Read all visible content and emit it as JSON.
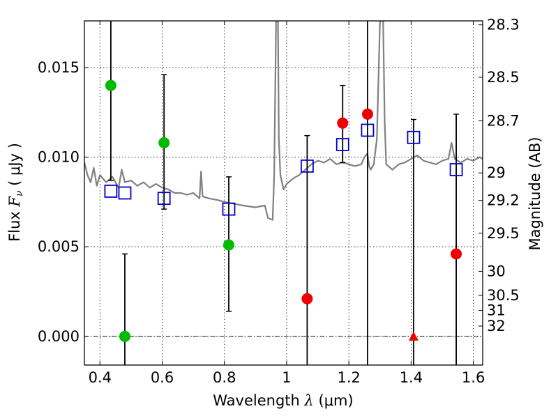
{
  "chart_data": {
    "type": "scatter",
    "x_axis": {
      "label_prefix": "Wavelength  ",
      "label_symbol": "λ",
      "label_suffix": " (μm)",
      "range": [
        0.35,
        1.63
      ],
      "ticks": [
        0.4,
        0.6,
        0.8,
        1.0,
        1.2,
        1.4,
        1.6
      ],
      "tick_labels": [
        "0.4",
        "0.6",
        "0.8",
        "1",
        "1.2",
        "1.4",
        "1.6"
      ]
    },
    "y_axis": {
      "label_prefix": "Flux  ",
      "label_symbol": "F",
      "label_subscript": "ν",
      "label_suffix": "  ( μJy )",
      "range": [
        -0.0016,
        0.0176
      ],
      "ticks": [
        0.0,
        0.005,
        0.01,
        0.015
      ],
      "tick_labels": [
        "0.000",
        "0.005",
        "0.010",
        "0.015"
      ]
    },
    "y2_axis": {
      "label": "Magnitude (AB)",
      "ticks": [
        28.3,
        28.5,
        28.7,
        29,
        29.2,
        29.5,
        30,
        30.5,
        31,
        32
      ],
      "tick_labels": [
        "28.3",
        "28.5",
        "28.7",
        "29",
        "29.2",
        "29.5",
        "30",
        "30.5",
        "31",
        "32"
      ]
    },
    "grid": true,
    "zero_line": 0.0,
    "colors": {
      "green": "#00bb00",
      "red": "#ee0000",
      "blue": "#0000cc",
      "spectrum": "#808080",
      "errorbar": "#000000"
    },
    "series": [
      {
        "marker": "circle",
        "color": "green",
        "points": [
          {
            "x": 0.435,
            "y": 0.014,
            "ylo": 0.0087,
            "yhi": 0.0176
          },
          {
            "x": 0.48,
            "y": 0.0,
            "ylo": -0.0016,
            "yhi": 0.0046
          },
          {
            "x": 0.606,
            "y": 0.0108,
            "ylo": 0.0071,
            "yhi": 0.0146
          },
          {
            "x": 0.814,
            "y": 0.0051,
            "ylo": 0.0014,
            "yhi": 0.0089
          }
        ]
      },
      {
        "marker": "circle",
        "color": "red",
        "points": [
          {
            "x": 1.066,
            "y": 0.0021,
            "ylo": -0.0016,
            "yhi": 0.0112
          },
          {
            "x": 1.18,
            "y": 0.0119,
            "ylo": 0.0097,
            "yhi": 0.014
          },
          {
            "x": 1.26,
            "y": 0.0124,
            "ylo": -0.0016,
            "yhi": 0.0176
          },
          {
            "x": 1.545,
            "y": 0.0046,
            "ylo": -0.0016,
            "yhi": 0.0124
          }
        ]
      },
      {
        "marker": "triangle",
        "color": "red",
        "points": [
          {
            "x": 1.408,
            "y": 0.0,
            "ylo": -0.0016,
            "yhi": 0.0121
          }
        ]
      },
      {
        "marker": "square-open",
        "color": "blue",
        "points": [
          {
            "x": 0.435,
            "y": 0.0081
          },
          {
            "x": 0.48,
            "y": 0.008
          },
          {
            "x": 0.606,
            "y": 0.0077
          },
          {
            "x": 0.814,
            "y": 0.0071
          },
          {
            "x": 1.066,
            "y": 0.0095
          },
          {
            "x": 1.18,
            "y": 0.0107
          },
          {
            "x": 1.26,
            "y": 0.0115
          },
          {
            "x": 1.408,
            "y": 0.0111
          },
          {
            "x": 1.545,
            "y": 0.0093
          }
        ]
      },
      {
        "marker": "line",
        "color": "spectrum",
        "points": [
          [
            0.35,
            0.0097
          ],
          [
            0.36,
            0.009
          ],
          [
            0.37,
            0.0086
          ],
          [
            0.38,
            0.0094
          ],
          [
            0.39,
            0.0084
          ],
          [
            0.4,
            0.009
          ],
          [
            0.42,
            0.0086
          ],
          [
            0.44,
            0.0089
          ],
          [
            0.46,
            0.0083
          ],
          [
            0.47,
            0.0093
          ],
          [
            0.48,
            0.0086
          ],
          [
            0.5,
            0.0087
          ],
          [
            0.52,
            0.0084
          ],
          [
            0.54,
            0.0086
          ],
          [
            0.56,
            0.0083
          ],
          [
            0.58,
            0.0085
          ],
          [
            0.6,
            0.0083
          ],
          [
            0.62,
            0.0082
          ],
          [
            0.64,
            0.008
          ],
          [
            0.66,
            0.008
          ],
          [
            0.68,
            0.0079
          ],
          [
            0.7,
            0.008
          ],
          [
            0.72,
            0.0077
          ],
          [
            0.725,
            0.0092
          ],
          [
            0.73,
            0.0078
          ],
          [
            0.75,
            0.0077
          ],
          [
            0.78,
            0.0076
          ],
          [
            0.8,
            0.0075
          ],
          [
            0.83,
            0.0074
          ],
          [
            0.86,
            0.0073
          ],
          [
            0.9,
            0.0072
          ],
          [
            0.93,
            0.0073
          ],
          [
            0.94,
            0.0066
          ],
          [
            0.955,
            0.0065
          ],
          [
            0.96,
            0.009
          ],
          [
            0.966,
            0.0176
          ],
          [
            0.972,
            0.0176
          ],
          [
            0.975,
            0.011
          ],
          [
            0.98,
            0.009
          ],
          [
            0.99,
            0.0082
          ],
          [
            1.0,
            0.0085
          ],
          [
            1.02,
            0.0088
          ],
          [
            1.04,
            0.009
          ],
          [
            1.06,
            0.0093
          ],
          [
            1.08,
            0.0096
          ],
          [
            1.1,
            0.0098
          ],
          [
            1.12,
            0.0097
          ],
          [
            1.14,
            0.0099
          ],
          [
            1.16,
            0.0096
          ],
          [
            1.18,
            0.0097
          ],
          [
            1.2,
            0.0096
          ],
          [
            1.22,
            0.0095
          ],
          [
            1.24,
            0.0096
          ],
          [
            1.25,
            0.01
          ],
          [
            1.26,
            0.0102
          ],
          [
            1.265,
            0.0095
          ],
          [
            1.27,
            0.0093
          ],
          [
            1.28,
            0.0096
          ],
          [
            1.29,
            0.011
          ],
          [
            1.3,
            0.0176
          ],
          [
            1.31,
            0.0176
          ],
          [
            1.315,
            0.012
          ],
          [
            1.32,
            0.0096
          ],
          [
            1.34,
            0.0093
          ],
          [
            1.36,
            0.0096
          ],
          [
            1.38,
            0.0097
          ],
          [
            1.4,
            0.0099
          ],
          [
            1.42,
            0.0101
          ],
          [
            1.44,
            0.0098
          ],
          [
            1.46,
            0.0097
          ],
          [
            1.48,
            0.0096
          ],
          [
            1.5,
            0.0098
          ],
          [
            1.52,
            0.0099
          ],
          [
            1.53,
            0.0108
          ],
          [
            1.54,
            0.0099
          ],
          [
            1.56,
            0.0097
          ],
          [
            1.58,
            0.0099
          ],
          [
            1.6,
            0.0098
          ],
          [
            1.62,
            0.01
          ],
          [
            1.63,
            0.0099
          ]
        ]
      }
    ]
  }
}
